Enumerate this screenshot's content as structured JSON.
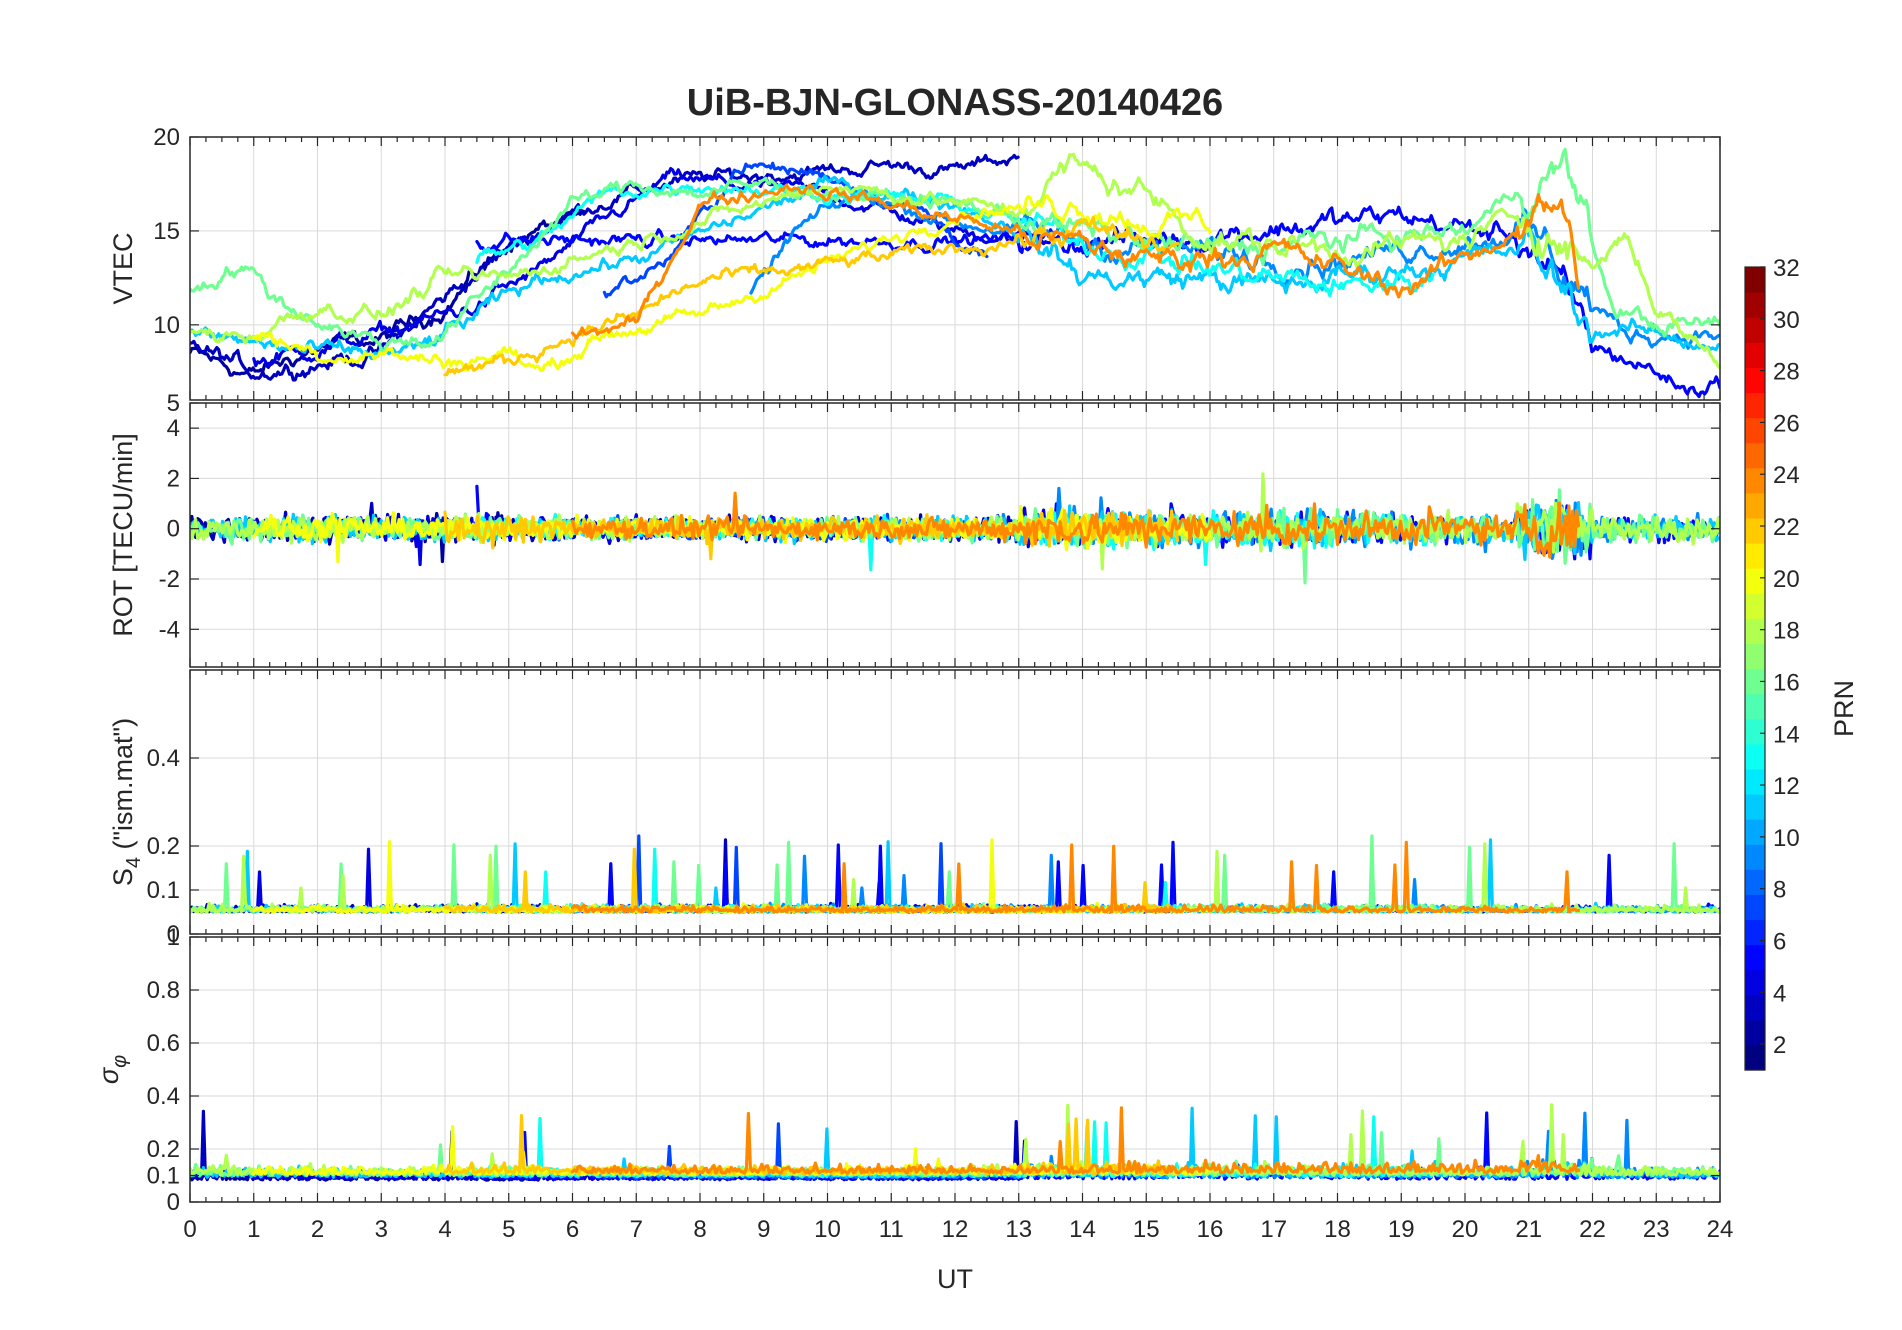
{
  "chart_data": {
    "type": "line",
    "title": "UiB-BJN-GLONASS-20140426",
    "xlabel": "UT",
    "xlim": [
      0,
      24
    ],
    "xticks": [
      "0",
      "1",
      "2",
      "3",
      "4",
      "5",
      "6",
      "7",
      "8",
      "9",
      "10",
      "11",
      "12",
      "13",
      "14",
      "15",
      "16",
      "17",
      "18",
      "19",
      "20",
      "21",
      "22",
      "23",
      "24"
    ],
    "grid": true,
    "panels": [
      {
        "name": "vtec",
        "ylabel": "VTEC",
        "ylim": [
          6,
          20
        ],
        "yticks": [
          10,
          15,
          20
        ],
        "ytick_labels": [
          "10",
          "15",
          "20"
        ],
        "kind": "vtec"
      },
      {
        "name": "rot",
        "ylabel": "ROT [TECU/min]",
        "ylim": [
          -5.5,
          5
        ],
        "yticks": [
          -4,
          -2,
          0,
          2,
          4,
          5
        ],
        "ytick_labels": [
          "-4",
          "-2",
          "0",
          "2",
          "4",
          "5"
        ],
        "kind": "rot"
      },
      {
        "name": "s4",
        "ylabel": "S4 (\"ism.mat\")",
        "ylabel_main": "S",
        "ylabel_sub": "4",
        "ylabel_rest": " (\"ism.mat\")",
        "ylim": [
          0,
          0.6
        ],
        "yticks": [
          0,
          0.1,
          0.2,
          0.4
        ],
        "ytick_labels": [
          "0",
          "0.1",
          "0.2",
          "0.4"
        ],
        "kind": "s4"
      },
      {
        "name": "sigma-phi",
        "ylabel": "σφ",
        "ylabel_main": "σ",
        "ylabel_sub": "φ",
        "ylim": [
          0,
          1
        ],
        "yticks": [
          0,
          0.1,
          0.2,
          0.4,
          0.6,
          0.8,
          1
        ],
        "ytick_labels": [
          "0",
          "0.1",
          "0.2",
          "0.4",
          "0.6",
          "0.8",
          "1"
        ],
        "kind": "sigma"
      }
    ],
    "colorbar": {
      "label": "PRN",
      "range": [
        1,
        32
      ],
      "ticks": [
        "2",
        "4",
        "6",
        "8",
        "10",
        "12",
        "14",
        "16",
        "18",
        "20",
        "22",
        "24",
        "26",
        "28",
        "30",
        "32"
      ],
      "colormap": "jet"
    },
    "satellites": [
      {
        "prn": 2,
        "start": 0.0,
        "end": 6.2,
        "vtec": [
          [
            0,
            8.5
          ],
          [
            1,
            7.3
          ],
          [
            2,
            8.8
          ],
          [
            3,
            9.2
          ],
          [
            4,
            11.0
          ],
          [
            5,
            14.4
          ],
          [
            5.8,
            15.5
          ]
        ]
      },
      {
        "prn": 3,
        "start": 0.0,
        "end": 13.0,
        "vtec": [
          [
            0,
            9.0
          ],
          [
            1,
            7.5
          ],
          [
            3,
            8.5
          ],
          [
            4,
            11.5
          ],
          [
            5,
            14.0
          ],
          [
            6,
            16.0
          ],
          [
            7,
            17.2
          ],
          [
            8,
            17.8
          ],
          [
            9,
            18.0
          ],
          [
            10,
            18.2
          ],
          [
            11,
            18.5
          ],
          [
            12,
            18.2
          ],
          [
            13,
            19.0
          ]
        ]
      },
      {
        "prn": 4,
        "start": 1.0,
        "end": 13.5,
        "vtec": [
          [
            1,
            8.0
          ],
          [
            3,
            9.5
          ],
          [
            4.5,
            11.0
          ],
          [
            5.5,
            13.0
          ],
          [
            6.5,
            15.5
          ],
          [
            7.5,
            17.8
          ],
          [
            10,
            17.0
          ],
          [
            12,
            15.0
          ],
          [
            13.5,
            14.5
          ]
        ]
      },
      {
        "prn": 5,
        "start": 4.5,
        "end": 24.0,
        "vtec": [
          [
            15,
            14.5
          ],
          [
            18,
            15.5
          ],
          [
            19,
            15.8
          ],
          [
            21,
            14.5
          ],
          [
            22,
            9.0
          ],
          [
            23,
            7.5
          ],
          [
            23.5,
            6.5
          ],
          [
            24,
            7.0
          ]
        ]
      },
      {
        "prn": 7,
        "start": 6.5,
        "end": 12.5,
        "vtec": [
          [
            6.5,
            11.5
          ],
          [
            7.5,
            13.5
          ],
          [
            8.2,
            16.5
          ],
          [
            8.6,
            18.5
          ],
          [
            10,
            18.0
          ],
          [
            11.5,
            16.0
          ],
          [
            12.5,
            13.5
          ]
        ]
      },
      {
        "prn": 9,
        "start": 8.8,
        "end": 24.0,
        "vtec": [
          [
            8.8,
            11.5
          ],
          [
            9.5,
            15.0
          ],
          [
            10.5,
            17.0
          ],
          [
            12,
            15.5
          ],
          [
            15,
            14.0
          ],
          [
            18,
            13.5
          ],
          [
            20,
            14.5
          ],
          [
            21,
            15.0
          ],
          [
            21.8,
            12.0
          ],
          [
            22.5,
            9.5
          ],
          [
            24,
            9.5
          ]
        ]
      },
      {
        "prn": 11,
        "start": 0.0,
        "end": 24.0,
        "vtec": [
          [
            0,
            9.5
          ],
          [
            2,
            8.5
          ],
          [
            3.5,
            8.5
          ],
          [
            5.5,
            12.5
          ],
          [
            7,
            13.5
          ],
          [
            10,
            17.5
          ],
          [
            12,
            16.5
          ],
          [
            13,
            15.0
          ],
          [
            14,
            12.5
          ],
          [
            16,
            12.5
          ],
          [
            17,
            12.0
          ],
          [
            21,
            14.0
          ],
          [
            22,
            10.0
          ],
          [
            24,
            9.0
          ]
        ]
      },
      {
        "prn": 13,
        "start": 4.5,
        "end": 19.5,
        "vtec": [
          [
            4.5,
            13.5
          ],
          [
            5.5,
            14.5
          ],
          [
            6.5,
            17.0
          ],
          [
            8,
            17.5
          ],
          [
            10,
            17.0
          ],
          [
            12,
            16.5
          ],
          [
            14,
            14.5
          ],
          [
            16,
            13.0
          ],
          [
            18,
            12.0
          ],
          [
            19.5,
            12.5
          ]
        ]
      },
      {
        "prn": 16,
        "start": 0.0,
        "end": 24.0,
        "vtec": [
          [
            0,
            12.0
          ],
          [
            0.8,
            13.2
          ],
          [
            1.5,
            11.0
          ],
          [
            3,
            9.0
          ],
          [
            4,
            9.5
          ],
          [
            6,
            16.5
          ],
          [
            7,
            17.5
          ],
          [
            8,
            17.0
          ],
          [
            9,
            17.5
          ],
          [
            10,
            17.0
          ],
          [
            12,
            16.5
          ],
          [
            14,
            15.0
          ],
          [
            16,
            14.0
          ],
          [
            18,
            14.5
          ],
          [
            20,
            15.0
          ],
          [
            21,
            17.5
          ],
          [
            21.6,
            18.5
          ],
          [
            22.3,
            11.0
          ],
          [
            23,
            10.0
          ],
          [
            24,
            10.0
          ]
        ]
      },
      {
        "prn": 18,
        "start": 0.0,
        "end": 24.0,
        "vtec": [
          [
            0,
            9.5
          ],
          [
            1,
            9.5
          ],
          [
            2,
            11.0
          ],
          [
            3,
            10.5
          ],
          [
            4,
            12.5
          ],
          [
            5,
            12.5
          ],
          [
            10,
            17.5
          ],
          [
            12,
            16.5
          ],
          [
            13,
            16.0
          ],
          [
            13.8,
            18.5
          ],
          [
            15,
            17.0
          ],
          [
            16,
            14.5
          ],
          [
            18,
            14.0
          ],
          [
            20,
            14.5
          ],
          [
            21,
            16.0
          ],
          [
            22,
            13.0
          ],
          [
            22.5,
            15.0
          ],
          [
            23,
            11.0
          ],
          [
            24,
            8.0
          ]
        ]
      },
      {
        "prn": 20,
        "start": 1.0,
        "end": 16.0,
        "vtec": [
          [
            1,
            9.5
          ],
          [
            2,
            8.5
          ],
          [
            3,
            8.5
          ],
          [
            4,
            8.0
          ],
          [
            5,
            8.5
          ],
          [
            5.5,
            7.5
          ],
          [
            6.5,
            9.5
          ],
          [
            8,
            10.5
          ],
          [
            12,
            16.0
          ],
          [
            14,
            16.5
          ],
          [
            15,
            15.5
          ],
          [
            16,
            15.5
          ]
        ]
      },
      {
        "prn": 22,
        "start": 4.0,
        "end": 15.5,
        "vtec": [
          [
            4,
            7.5
          ],
          [
            5,
            8.0
          ],
          [
            6,
            9.5
          ],
          [
            7,
            10.5
          ],
          [
            7.5,
            11.5
          ],
          [
            8.2,
            12.5
          ],
          [
            8.5,
            12.5
          ],
          [
            14,
            15.0
          ],
          [
            15.5,
            14.0
          ]
        ]
      },
      {
        "prn": 24,
        "start": 6.0,
        "end": 21.8,
        "vtec": [
          [
            6,
            9.5
          ],
          [
            7,
            10.0
          ],
          [
            8,
            16.5
          ],
          [
            8.8,
            17.0
          ],
          [
            9.5,
            17.5
          ],
          [
            15,
            13.5
          ],
          [
            17,
            14.0
          ],
          [
            18,
            13.0
          ],
          [
            19,
            12.0
          ],
          [
            20,
            13.5
          ],
          [
            21,
            15.5
          ],
          [
            21.5,
            16.5
          ],
          [
            21.8,
            12.0
          ]
        ]
      }
    ]
  }
}
